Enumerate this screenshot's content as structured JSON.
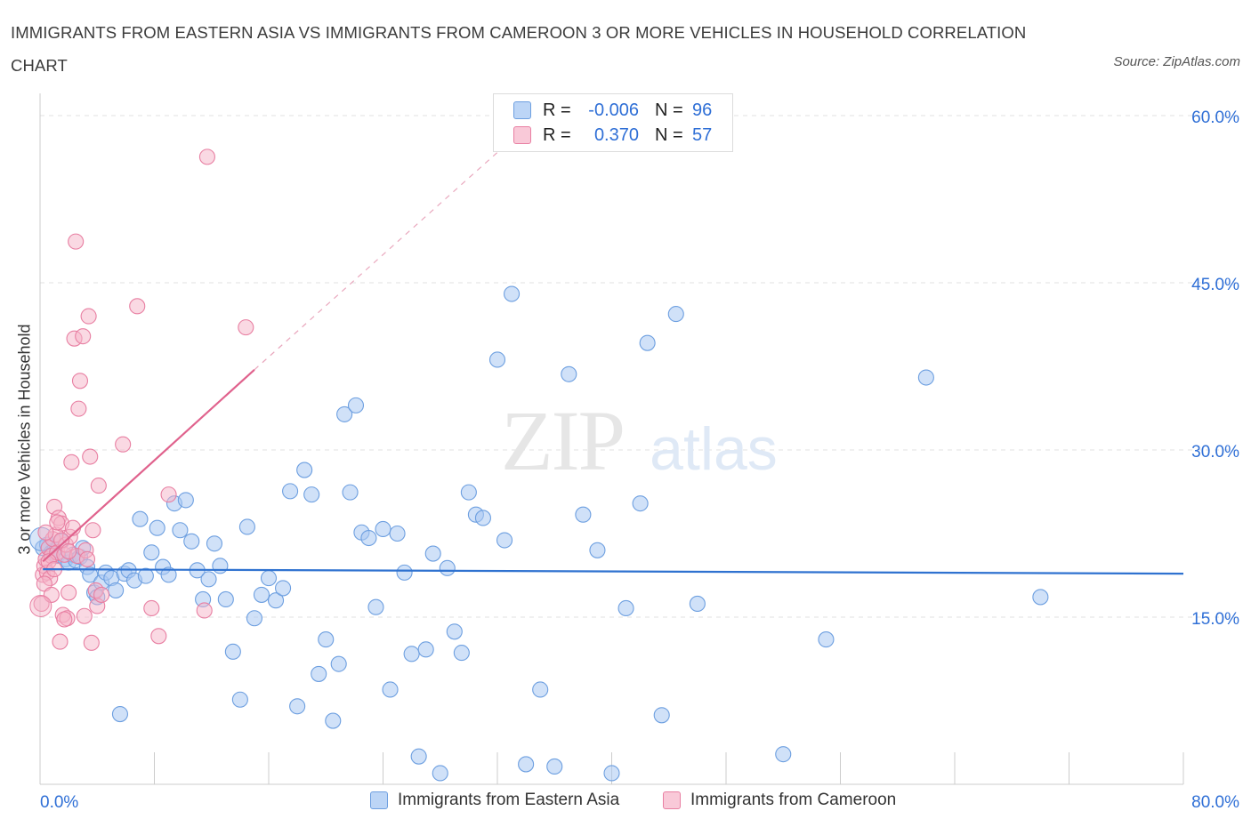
{
  "title": "IMMIGRANTS FROM EASTERN ASIA VS IMMIGRANTS FROM CAMEROON 3 OR MORE VEHICLES IN HOUSEHOLD CORRELATION CHART",
  "source": "Source: ZipAtlas.com",
  "watermark": {
    "zip": "ZIP",
    "atlas": "atlas"
  },
  "colors": {
    "blue_fill": "#a9c8f2",
    "blue_stroke": "#6d9fe0",
    "blue_line": "#2f72d0",
    "pink_fill": "#f5b3c8",
    "pink_stroke": "#e87fa2",
    "pink_line": "#e0628d",
    "accent_text": "#2f6fd6",
    "grid": "#e2e2e2"
  },
  "legend": {
    "r_label": "R =",
    "n_label": "N =",
    "rows": [
      {
        "series": "blue",
        "r": "-0.006",
        "n": "96"
      },
      {
        "series": "pink",
        "r": "0.370",
        "n": "57"
      }
    ]
  },
  "bottom_legend": {
    "blue": "Immigrants from Eastern Asia",
    "pink": "Immigrants from Cameroon"
  },
  "chart_data": {
    "type": "scatter",
    "title": "IMMIGRANTS FROM EASTERN ASIA VS IMMIGRANTS FROM CAMEROON 3 OR MORE VEHICLES IN HOUSEHOLD CORRELATION CHART",
    "xlabel": "",
    "ylabel": "3 or more Vehicles in Household",
    "xlim": [
      0,
      80
    ],
    "ylim": [
      0,
      60
    ],
    "x_tick_labels": [
      "0.0%",
      "80.0%"
    ],
    "y_tick_labels": [
      "15.0%",
      "30.0%",
      "45.0%",
      "60.0%"
    ],
    "y_ticks": [
      15,
      30,
      45,
      60
    ],
    "grid": true,
    "legend_position": "top-center",
    "series": [
      {
        "name": "Immigrants from Eastern Asia",
        "color": "#a9c8f2",
        "trend": {
          "x": [
            0.2,
            80
          ],
          "y": [
            19.3,
            18.9
          ],
          "style": "solid"
        },
        "points": [
          [
            0.2,
            21.2
          ],
          [
            0.5,
            21.5
          ],
          [
            0.8,
            20.8
          ],
          [
            1.0,
            21.0
          ],
          [
            1.2,
            20.5
          ],
          [
            1.5,
            21.8
          ],
          [
            1.8,
            20.2
          ],
          [
            2.0,
            19.9
          ],
          [
            2.3,
            20.6
          ],
          [
            2.5,
            20.1
          ],
          [
            2.8,
            20.4
          ],
          [
            3.0,
            21.2
          ],
          [
            3.3,
            19.5
          ],
          [
            3.5,
            18.8
          ],
          [
            3.8,
            17.2
          ],
          [
            4.0,
            16.8
          ],
          [
            4.3,
            18.1
          ],
          [
            4.6,
            19.0
          ],
          [
            5.0,
            18.5
          ],
          [
            5.3,
            17.4
          ],
          [
            5.6,
            6.3
          ],
          [
            5.9,
            18.9
          ],
          [
            6.2,
            19.2
          ],
          [
            6.6,
            18.3
          ],
          [
            7.0,
            23.8
          ],
          [
            7.4,
            18.7
          ],
          [
            7.8,
            20.8
          ],
          [
            8.2,
            23.0
          ],
          [
            8.6,
            19.5
          ],
          [
            9.0,
            18.8
          ],
          [
            9.4,
            25.2
          ],
          [
            9.8,
            22.8
          ],
          [
            10.2,
            25.5
          ],
          [
            10.6,
            21.8
          ],
          [
            11.0,
            19.2
          ],
          [
            11.4,
            16.6
          ],
          [
            11.8,
            18.4
          ],
          [
            12.2,
            21.6
          ],
          [
            12.6,
            19.6
          ],
          [
            13.0,
            16.6
          ],
          [
            13.5,
            11.9
          ],
          [
            14.0,
            7.6
          ],
          [
            14.5,
            23.1
          ],
          [
            15.0,
            14.9
          ],
          [
            15.5,
            17.0
          ],
          [
            16.0,
            18.5
          ],
          [
            16.5,
            16.5
          ],
          [
            17.0,
            17.6
          ],
          [
            17.5,
            26.3
          ],
          [
            18.0,
            7.0
          ],
          [
            18.5,
            28.2
          ],
          [
            19.0,
            26.0
          ],
          [
            19.5,
            9.9
          ],
          [
            20.0,
            13.0
          ],
          [
            20.5,
            5.7
          ],
          [
            20.9,
            10.8
          ],
          [
            21.3,
            33.2
          ],
          [
            21.7,
            26.2
          ],
          [
            22.1,
            34.0
          ],
          [
            22.5,
            22.6
          ],
          [
            23.0,
            22.1
          ],
          [
            23.5,
            15.9
          ],
          [
            24.0,
            22.9
          ],
          [
            24.5,
            8.5
          ],
          [
            25.0,
            22.5
          ],
          [
            25.5,
            19.0
          ],
          [
            26.0,
            11.7
          ],
          [
            26.5,
            2.5
          ],
          [
            27.0,
            12.1
          ],
          [
            27.5,
            20.7
          ],
          [
            28.0,
            1.0
          ],
          [
            28.5,
            19.4
          ],
          [
            29.0,
            13.7
          ],
          [
            29.5,
            11.8
          ],
          [
            30.0,
            26.2
          ],
          [
            30.5,
            24.2
          ],
          [
            31.0,
            23.9
          ],
          [
            32.0,
            38.1
          ],
          [
            32.5,
            21.9
          ],
          [
            33.0,
            44.0
          ],
          [
            34.0,
            1.8
          ],
          [
            35.0,
            8.5
          ],
          [
            36.0,
            1.6
          ],
          [
            37.0,
            36.8
          ],
          [
            38.0,
            24.2
          ],
          [
            39.0,
            21.0
          ],
          [
            40.0,
            1.0
          ],
          [
            41.0,
            15.8
          ],
          [
            42.0,
            25.2
          ],
          [
            42.5,
            39.6
          ],
          [
            43.5,
            6.2
          ],
          [
            44.5,
            42.2
          ],
          [
            46.0,
            16.2
          ],
          [
            52.0,
            2.7
          ],
          [
            55.0,
            13.0
          ],
          [
            62.0,
            36.5
          ],
          [
            70.0,
            16.8
          ]
        ]
      },
      {
        "name": "Immigrants from Cameroon",
        "color": "#f5b3c8",
        "trend": {
          "x": [
            0.2,
            15
          ],
          "y": [
            20.0,
            37.2
          ],
          "style": "solid",
          "extension": {
            "x": [
              15,
              32
            ],
            "y": [
              37.2,
              56.7
            ],
            "style": "dashed"
          }
        },
        "points": [
          [
            0.1,
            16.2
          ],
          [
            0.2,
            18.8
          ],
          [
            0.3,
            19.6
          ],
          [
            0.4,
            20.2
          ],
          [
            0.5,
            19.0
          ],
          [
            0.6,
            21.2
          ],
          [
            0.7,
            18.5
          ],
          [
            0.8,
            20.5
          ],
          [
            0.9,
            22.0
          ],
          [
            1.0,
            24.9
          ],
          [
            1.1,
            22.4
          ],
          [
            1.2,
            20.8
          ],
          [
            1.3,
            23.9
          ],
          [
            1.4,
            12.8
          ],
          [
            1.5,
            23.4
          ],
          [
            1.6,
            15.2
          ],
          [
            1.7,
            20.6
          ],
          [
            1.8,
            21.5
          ],
          [
            1.9,
            14.9
          ],
          [
            2.0,
            17.2
          ],
          [
            2.1,
            22.2
          ],
          [
            2.2,
            28.9
          ],
          [
            2.4,
            40.0
          ],
          [
            2.5,
            48.7
          ],
          [
            2.6,
            20.5
          ],
          [
            2.7,
            33.7
          ],
          [
            2.8,
            36.2
          ],
          [
            3.0,
            40.2
          ],
          [
            3.1,
            15.1
          ],
          [
            3.2,
            21.0
          ],
          [
            3.3,
            20.2
          ],
          [
            3.4,
            42.0
          ],
          [
            3.5,
            29.4
          ],
          [
            3.6,
            12.7
          ],
          [
            3.7,
            22.8
          ],
          [
            3.9,
            17.4
          ],
          [
            4.0,
            16.0
          ],
          [
            4.1,
            26.8
          ],
          [
            4.3,
            17.0
          ],
          [
            5.8,
            30.5
          ],
          [
            6.8,
            42.9
          ],
          [
            7.8,
            15.8
          ],
          [
            8.3,
            13.3
          ],
          [
            9.0,
            26.0
          ],
          [
            11.5,
            15.6
          ],
          [
            11.7,
            56.3
          ],
          [
            14.4,
            41.0
          ],
          [
            0.3,
            18.0
          ],
          [
            0.6,
            20.0
          ],
          [
            1.0,
            19.3
          ],
          [
            1.5,
            21.9
          ],
          [
            2.0,
            20.9
          ],
          [
            2.3,
            23.0
          ],
          [
            0.8,
            17.0
          ],
          [
            1.2,
            23.5
          ],
          [
            0.4,
            22.6
          ],
          [
            1.7,
            14.8
          ]
        ]
      }
    ]
  }
}
